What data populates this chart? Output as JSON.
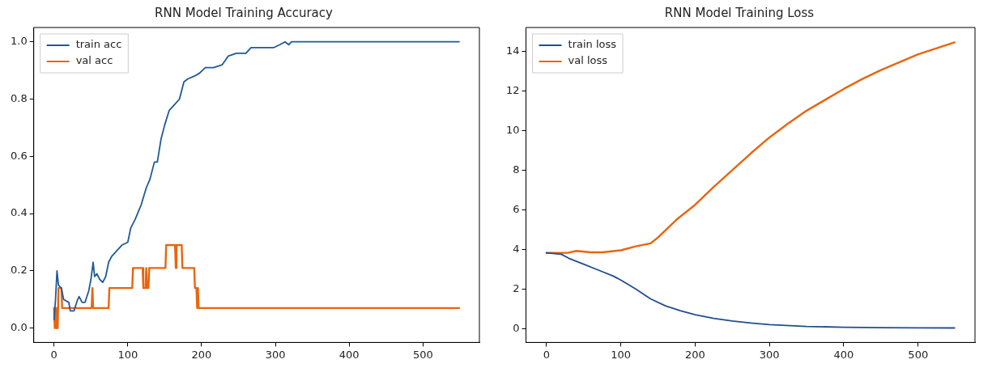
{
  "chart_data": [
    {
      "type": "line",
      "title": "RNN Model Training Accuracy",
      "xlim": [
        -27.5,
        576.5
      ],
      "ylim": [
        -0.05,
        1.05
      ],
      "xticks": [
        0,
        100,
        200,
        300,
        400,
        500
      ],
      "yticks": [
        {
          "value": 0,
          "label": "0.0"
        },
        {
          "value": 0.2,
          "label": "0.2"
        },
        {
          "value": 0.4,
          "label": "0.4"
        },
        {
          "value": 0.6,
          "label": "0.6"
        },
        {
          "value": 0.8,
          "label": "0.8"
        },
        {
          "value": 1,
          "label": "1.0"
        }
      ],
      "grid": false,
      "legend": "top left",
      "marker": "none",
      "line_style": "solid",
      "series": [
        {
          "name": "train acc",
          "color": "#1f5a96",
          "x": [
            0,
            2,
            4,
            6,
            10,
            13,
            20,
            22,
            27,
            32,
            34,
            38,
            42,
            47,
            50,
            53,
            55,
            58,
            62,
            66,
            70,
            74,
            78,
            85,
            92,
            100,
            104,
            110,
            118,
            125,
            130,
            136,
            140,
            145,
            150,
            156,
            163,
            170,
            176,
            181,
            190,
            197,
            205,
            216,
            228,
            236,
            247,
            260,
            267,
            280,
            298,
            306,
            313,
            318,
            322,
            549
          ],
          "values": [
            0.03,
            0.1,
            0.2,
            0.15,
            0.14,
            0.1,
            0.09,
            0.06,
            0.06,
            0.1,
            0.11,
            0.09,
            0.09,
            0.13,
            0.17,
            0.23,
            0.18,
            0.19,
            0.17,
            0.16,
            0.18,
            0.23,
            0.25,
            0.27,
            0.29,
            0.3,
            0.35,
            0.38,
            0.43,
            0.49,
            0.52,
            0.58,
            0.58,
            0.66,
            0.71,
            0.76,
            0.78,
            0.8,
            0.86,
            0.87,
            0.88,
            0.89,
            0.91,
            0.91,
            0.92,
            0.95,
            0.96,
            0.96,
            0.98,
            0.98,
            0.98,
            0.99,
            1.0,
            0.99,
            1.0,
            1.0
          ]
        },
        {
          "name": "val acc",
          "color": "#e8650f",
          "x": [
            0,
            1,
            2,
            3,
            4,
            5,
            6,
            10,
            11,
            51,
            52,
            53,
            74,
            75,
            106,
            107,
            120,
            121,
            124,
            125,
            126,
            128,
            129,
            151,
            152,
            164,
            165,
            166,
            173,
            174,
            190,
            191,
            193,
            194,
            195,
            196,
            549
          ],
          "values": [
            0.07,
            0,
            0.07,
            0,
            0.07,
            0,
            0.14,
            0.14,
            0.07,
            0.07,
            0.14,
            0.07,
            0.07,
            0.14,
            0.14,
            0.21,
            0.21,
            0.14,
            0.14,
            0.21,
            0.14,
            0.14,
            0.21,
            0.21,
            0.29,
            0.29,
            0.21,
            0.29,
            0.29,
            0.21,
            0.21,
            0.14,
            0.14,
            0.07,
            0.14,
            0.07,
            0.07
          ]
        }
      ]
    },
    {
      "type": "line",
      "title": "RNN Model Training Loss",
      "xlim": [
        -27.5,
        576.5
      ],
      "ylim": [
        -0.7,
        15.2
      ],
      "xticks": [
        0,
        100,
        200,
        300,
        400,
        500
      ],
      "yticks": [
        0,
        2,
        4,
        6,
        8,
        10,
        12,
        14
      ],
      "grid": false,
      "legend": "top left",
      "marker": "none",
      "line_style": "solid",
      "series": [
        {
          "name": "train loss",
          "color": "#1f4f8f",
          "x": [
            0,
            20,
            30,
            50,
            70,
            90,
            100,
            120,
            140,
            160,
            180,
            200,
            225,
            250,
            275,
            300,
            350,
            400,
            450,
            500,
            549
          ],
          "values": [
            3.82,
            3.75,
            3.55,
            3.25,
            2.95,
            2.65,
            2.45,
            2.0,
            1.5,
            1.15,
            0.9,
            0.7,
            0.52,
            0.38,
            0.28,
            0.2,
            0.11,
            0.07,
            0.05,
            0.04,
            0.03
          ]
        },
        {
          "name": "val loss",
          "color": "#e8650f",
          "x": [
            0,
            30,
            40,
            60,
            75,
            100,
            120,
            140,
            150,
            175,
            200,
            225,
            250,
            275,
            300,
            325,
            350,
            375,
            400,
            425,
            450,
            475,
            500,
            525,
            549
          ],
          "values": [
            3.82,
            3.83,
            3.92,
            3.85,
            3.85,
            3.95,
            4.15,
            4.3,
            4.6,
            5.5,
            6.25,
            7.15,
            8.0,
            8.85,
            9.65,
            10.35,
            11.0,
            11.55,
            12.1,
            12.6,
            13.05,
            13.45,
            13.85,
            14.15,
            14.45
          ]
        }
      ]
    }
  ]
}
